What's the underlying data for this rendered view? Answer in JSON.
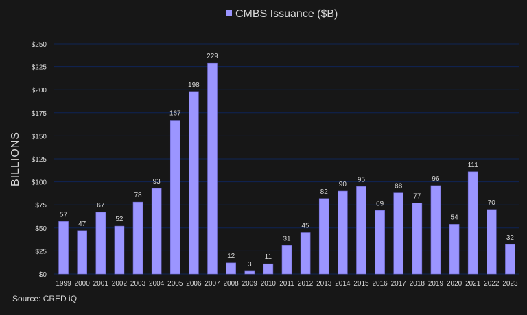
{
  "chart_data": {
    "type": "bar",
    "title": "",
    "legend": {
      "entries": [
        "CMBS Issuance ($B)"
      ],
      "placement": "top"
    },
    "ylabel": "BILLIONS",
    "xlabel": "",
    "ylim": [
      0,
      250
    ],
    "yticks": [
      "$0",
      "$25",
      "$50",
      "$75",
      "$100",
      "$125",
      "$150",
      "$175",
      "$200",
      "$225",
      "$250"
    ],
    "ytick_values": [
      0,
      25,
      50,
      75,
      100,
      125,
      150,
      175,
      200,
      225,
      250
    ],
    "grid": true,
    "categories": [
      "1999",
      "2000",
      "2001",
      "2002",
      "2003",
      "2004",
      "2005",
      "2006",
      "2007",
      "2008",
      "2009",
      "2010",
      "2011",
      "2012",
      "2013",
      "2014",
      "2015",
      "2016",
      "2017",
      "2018",
      "2019",
      "2020",
      "2021",
      "2022",
      "2023"
    ],
    "series": [
      {
        "name": "CMBS Issuance ($B)",
        "values": [
          57,
          47,
          67,
          52,
          78,
          93,
          167,
          198,
          229,
          12,
          3,
          11,
          31,
          45,
          82,
          90,
          95,
          69,
          88,
          77,
          96,
          54,
          111,
          70,
          32
        ]
      }
    ],
    "colors": {
      "bar": "#9b95ff",
      "background": "#171717",
      "grid": "#0f2456",
      "text": "#d8d8d8"
    }
  },
  "source": "Source:  CRED iQ"
}
